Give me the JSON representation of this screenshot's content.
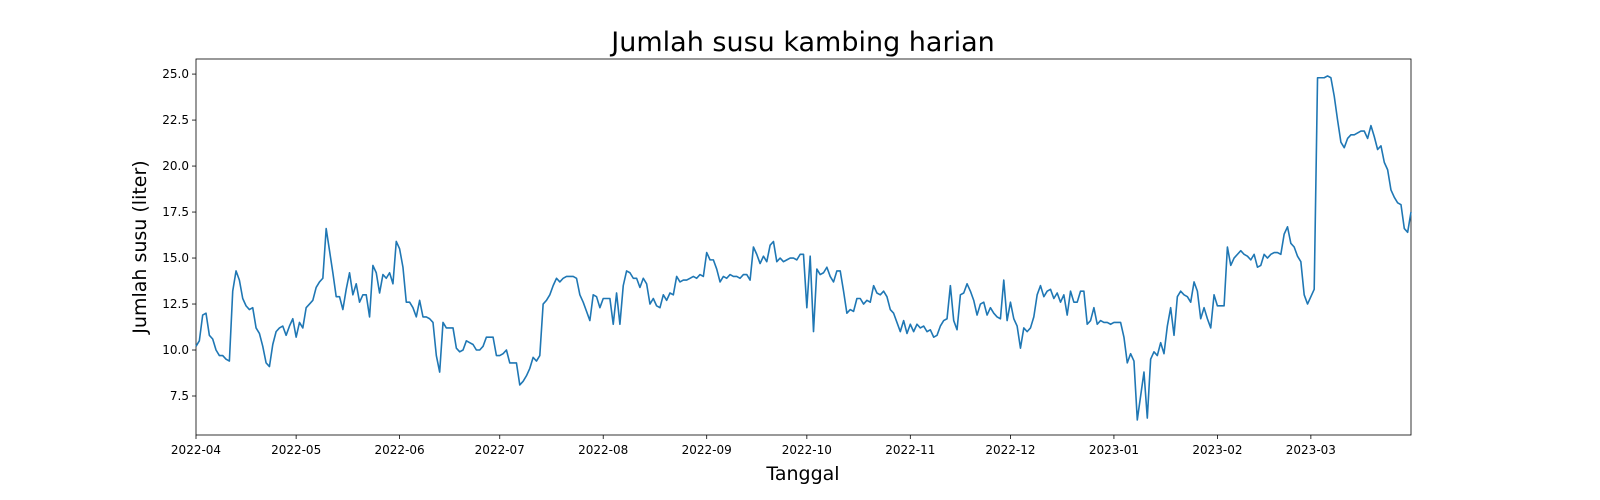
{
  "chart_data": {
    "type": "line",
    "title": "Jumlah susu kambing harian",
    "x_label": "Tanggal",
    "y_label": "Jumlah susu (liter)",
    "xlim": [
      "2022-04-01",
      "2023-03-31"
    ],
    "xticks": [
      "2022-04",
      "2022-05",
      "2022-06",
      "2022-07",
      "2022-08",
      "2022-09",
      "2022-10",
      "2022-11",
      "2022-12",
      "2023-01",
      "2023-02",
      "2023-03"
    ],
    "ylim": [
      5.38,
      25.82
    ],
    "yticks": [
      7.5,
      {
        "value": 10,
        "label": "10.0"
      },
      12.5,
      {
        "value": 15,
        "label": "15.0"
      },
      17.5,
      {
        "value": 20,
        "label": "20.0"
      },
      22.5,
      {
        "value": 25,
        "label": "25.0"
      }
    ],
    "color": "#1f77b4",
    "values": [
      10.2,
      10.5,
      11.9,
      12.0,
      10.8,
      10.6,
      10.0,
      9.7,
      9.7,
      9.5,
      9.4,
      13.2,
      14.3,
      13.8,
      12.8,
      12.4,
      12.2,
      12.3,
      11.2,
      10.9,
      10.2,
      9.3,
      9.1,
      10.3,
      11.0,
      11.2,
      11.3,
      10.8,
      11.3,
      11.7,
      10.7,
      11.5,
      11.2,
      12.3,
      12.5,
      12.7,
      13.4,
      13.7,
      13.9,
      16.6,
      15.4,
      14.2,
      12.9,
      12.9,
      12.2,
      13.3,
      14.2,
      13.0,
      13.6,
      12.6,
      13.0,
      13.0,
      11.8,
      14.6,
      14.2,
      13.1,
      14.1,
      13.9,
      14.2,
      13.6,
      15.9,
      15.5,
      14.5,
      12.6,
      12.6,
      12.3,
      11.8,
      12.7,
      11.8,
      11.8,
      11.7,
      11.5,
      9.7,
      8.8,
      11.5,
      11.2,
      11.2,
      11.2,
      10.1,
      9.9,
      10.0,
      10.5,
      10.4,
      10.3,
      10.0,
      10.0,
      10.2,
      10.7,
      10.7,
      10.7,
      9.7,
      9.7,
      9.8,
      10.0,
      9.3,
      9.3,
      9.3,
      8.1,
      8.3,
      8.6,
      9.0,
      9.6,
      9.4,
      9.7,
      12.5,
      12.7,
      13.0,
      13.5,
      13.9,
      13.7,
      13.9,
      14.0,
      14.0,
      14.0,
      13.9,
      13.0,
      12.6,
      12.1,
      11.6,
      13.0,
      12.9,
      12.3,
      12.8,
      12.8,
      12.8,
      11.4,
      13.1,
      11.4,
      13.5,
      14.3,
      14.2,
      13.9,
      13.9,
      13.4,
      13.9,
      13.6,
      12.5,
      12.8,
      12.4,
      12.3,
      13.0,
      12.7,
      13.1,
      13.0,
      14.0,
      13.7,
      13.8,
      13.8,
      13.9,
      14.0,
      13.9,
      14.1,
      14.0,
      15.3,
      14.9,
      14.9,
      14.4,
      13.7,
      14.0,
      13.9,
      14.1,
      14.0,
      14.0,
      13.9,
      14.1,
      14.1,
      13.8,
      15.6,
      15.2,
      14.7,
      15.1,
      14.8,
      15.7,
      15.9,
      14.8,
      15.0,
      14.8,
      14.9,
      15.0,
      15.0,
      14.9,
      15.2,
      15.2,
      12.3,
      15.1,
      11.0,
      14.4,
      14.1,
      14.2,
      14.5,
      14.0,
      13.7,
      14.3,
      14.3,
      13.2,
      12.0,
      12.2,
      12.1,
      12.8,
      12.8,
      12.5,
      12.7,
      12.6,
      13.5,
      13.1,
      13.0,
      13.2,
      12.9,
      12.2,
      12.0,
      11.5,
      11.0,
      11.6,
      10.9,
      11.4,
      11.0,
      11.4,
      11.2,
      11.3,
      11.0,
      11.1,
      10.7,
      10.8,
      11.3,
      11.6,
      11.7,
      13.5,
      11.6,
      11.1,
      13.0,
      13.1,
      13.6,
      13.2,
      12.7,
      11.9,
      12.5,
      12.6,
      11.9,
      12.3,
      12.0,
      11.8,
      11.7,
      13.8,
      11.6,
      12.6,
      11.7,
      11.3,
      10.1,
      11.2,
      11.0,
      11.2,
      11.8,
      13.0,
      13.5,
      12.9,
      13.2,
      13.3,
      12.8,
      13.1,
      12.6,
      13.0,
      11.9,
      13.2,
      12.6,
      12.6,
      13.2,
      13.2,
      11.4,
      11.6,
      12.3,
      11.4,
      11.6,
      11.5,
      11.5,
      11.4,
      11.5,
      11.5,
      11.5,
      10.7,
      9.3,
      9.8,
      9.4,
      6.2,
      7.5,
      8.8,
      6.3,
      9.5,
      9.9,
      9.7,
      10.4,
      9.8,
      11.3,
      12.3,
      10.8,
      12.9,
      13.2,
      13.0,
      12.9,
      12.6,
      13.7,
      13.2,
      11.7,
      12.3,
      11.7,
      11.2,
      13.0,
      12.4,
      12.4,
      12.4,
      15.6,
      14.6,
      15.0,
      15.2,
      15.4,
      15.2,
      15.1,
      14.9,
      15.2,
      14.5,
      14.6,
      15.2,
      15.0,
      15.2,
      15.3,
      15.3,
      15.2,
      16.3,
      16.7,
      15.8,
      15.6,
      15.1,
      14.8,
      13.0,
      12.5,
      12.9,
      13.3,
      24.8,
      24.8,
      24.8,
      24.9,
      24.8,
      23.8,
      22.5,
      21.3,
      21.0,
      21.5,
      21.7,
      21.7,
      21.8,
      21.9,
      21.9,
      21.5,
      22.2,
      21.6,
      20.9,
      21.1,
      20.2,
      19.8,
      18.7,
      18.3,
      18.0,
      17.9,
      16.6,
      16.4,
      17.5
    ]
  }
}
